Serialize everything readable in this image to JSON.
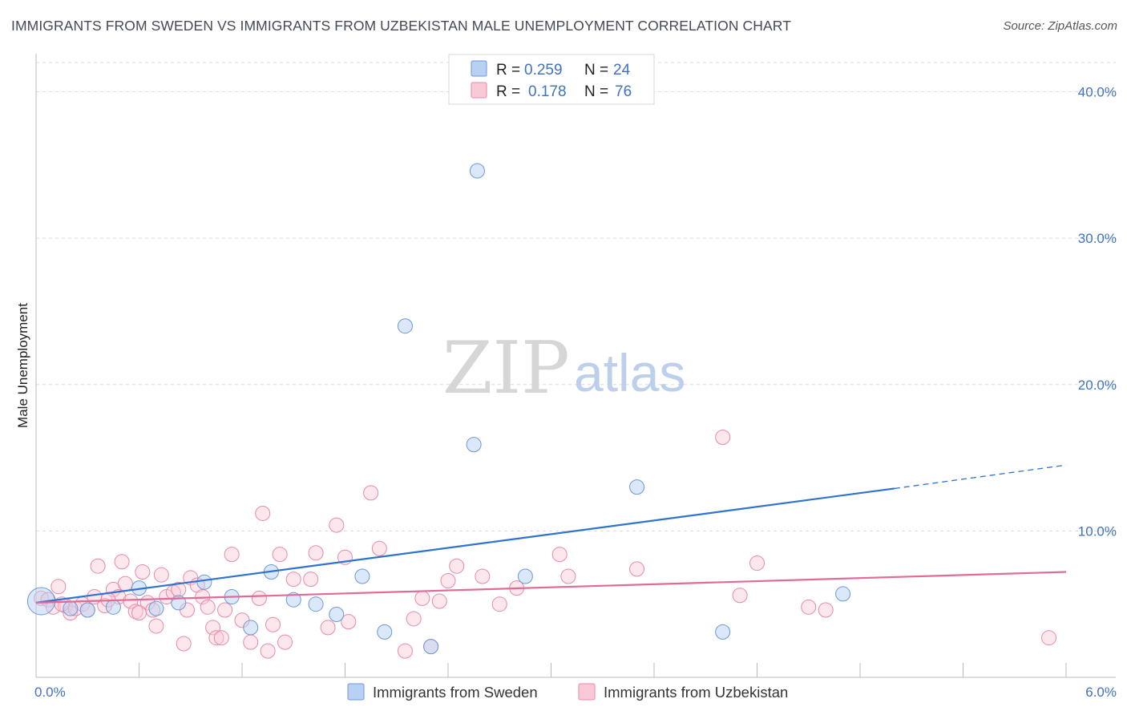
{
  "title": "IMMIGRANTS FROM SWEDEN VS IMMIGRANTS FROM UZBEKISTAN MALE UNEMPLOYMENT CORRELATION CHART",
  "source": "Source: ZipAtlas.com",
  "watermark": {
    "zip": "ZIP",
    "atlas": "atlas"
  },
  "chart_data": {
    "type": "scatter",
    "title": "IMMIGRANTS FROM SWEDEN VS IMMIGRANTS FROM UZBEKISTAN MALE UNEMPLOYMENT CORRELATION CHART",
    "xlabel": "",
    "ylabel": "Male Unemployment",
    "xlim": [
      0,
      6.0
    ],
    "ylim": [
      0,
      42
    ],
    "x_tick_labels": [
      "0.0%",
      "6.0%"
    ],
    "y_ticks": [
      10,
      20,
      30,
      40
    ],
    "y_tick_labels": [
      "10.0%",
      "20.0%",
      "30.0%",
      "40.0%"
    ],
    "grid": true,
    "legend_position": "top-center",
    "stats": [
      {
        "r_label": "R =",
        "r_value": "0.259",
        "n_label": "N =",
        "n_value": "24"
      },
      {
        "r_label": "R =",
        "r_value": "0.178",
        "n_label": "N =",
        "n_value": "76"
      }
    ],
    "colors": {
      "sweden_fill": "#b8d1f3",
      "sweden_stroke": "#6c98d8",
      "sweden_line": "#2f72d0",
      "uzbek_fill": "#f9c9d7",
      "uzbek_stroke": "#e88aa8",
      "uzbek_line": "#e06b96"
    },
    "series": [
      {
        "name": "Immigrants from Sweden",
        "trend": {
          "x0": 0.0,
          "y0": 5.1,
          "x1": 5.0,
          "y1": 12.9,
          "dash_to_x": 6.0,
          "dash_to_y": 14.5
        },
        "points": [
          [
            0.03,
            5.2,
            17
          ],
          [
            0.3,
            4.6,
            9
          ],
          [
            0.45,
            4.8,
            9
          ],
          [
            0.6,
            6.1,
            9
          ],
          [
            0.7,
            4.7,
            9
          ],
          [
            0.83,
            5.1,
            9
          ],
          [
            0.98,
            6.5,
            9
          ],
          [
            1.14,
            5.5,
            9
          ],
          [
            1.25,
            3.4,
            9
          ],
          [
            1.37,
            7.2,
            9
          ],
          [
            1.5,
            5.3,
            9
          ],
          [
            1.63,
            5.0,
            9
          ],
          [
            1.75,
            4.3,
            9
          ],
          [
            1.9,
            6.9,
            9
          ],
          [
            2.03,
            3.1,
            9
          ],
          [
            2.15,
            24.0,
            9
          ],
          [
            2.3,
            2.1,
            9
          ],
          [
            2.55,
            15.9,
            9
          ],
          [
            2.57,
            34.6,
            9
          ],
          [
            2.85,
            6.9,
            9
          ],
          [
            3.5,
            13.0,
            9
          ],
          [
            4.0,
            3.1,
            9
          ],
          [
            4.7,
            5.7,
            9
          ],
          [
            0.2,
            4.7,
            9
          ]
        ]
      },
      {
        "name": "Immigrants from Uzbekistan",
        "trend": {
          "x0": 0.0,
          "y0": 5.1,
          "x1": 6.0,
          "y1": 7.2
        },
        "points": [
          [
            0.03,
            5.4,
            9
          ],
          [
            0.07,
            5.3,
            9
          ],
          [
            0.1,
            4.8,
            9
          ],
          [
            0.13,
            6.2,
            9
          ],
          [
            0.17,
            4.9,
            9
          ],
          [
            0.2,
            4.4,
            9
          ],
          [
            0.23,
            4.7,
            9
          ],
          [
            0.27,
            5.0,
            9
          ],
          [
            0.3,
            4.6,
            9
          ],
          [
            0.34,
            5.5,
            9
          ],
          [
            0.36,
            7.6,
            9
          ],
          [
            0.4,
            4.9,
            9
          ],
          [
            0.45,
            6.0,
            9
          ],
          [
            0.48,
            5.5,
            9
          ],
          [
            0.5,
            7.9,
            9
          ],
          [
            0.52,
            6.4,
            9
          ],
          [
            0.55,
            5.2,
            9
          ],
          [
            0.58,
            4.5,
            9
          ],
          [
            0.62,
            7.2,
            9
          ],
          [
            0.65,
            5.1,
            9
          ],
          [
            0.68,
            4.6,
            9
          ],
          [
            0.7,
            3.5,
            9
          ],
          [
            0.73,
            7.0,
            9
          ],
          [
            0.76,
            5.5,
            9
          ],
          [
            0.8,
            5.8,
            9
          ],
          [
            0.83,
            6.0,
            9
          ],
          [
            0.86,
            2.3,
            9
          ],
          [
            0.88,
            4.6,
            9
          ],
          [
            0.9,
            6.8,
            9
          ],
          [
            0.94,
            6.3,
            9
          ],
          [
            0.97,
            5.5,
            9
          ],
          [
            1.0,
            4.8,
            9
          ],
          [
            1.03,
            3.4,
            9
          ],
          [
            1.05,
            2.7,
            9
          ],
          [
            1.08,
            2.7,
            9
          ],
          [
            1.1,
            4.6,
            9
          ],
          [
            1.14,
            8.4,
            9
          ],
          [
            1.2,
            3.9,
            9
          ],
          [
            1.25,
            2.4,
            9
          ],
          [
            1.3,
            5.4,
            9
          ],
          [
            1.32,
            11.2,
            9
          ],
          [
            1.35,
            1.8,
            9
          ],
          [
            1.38,
            3.6,
            9
          ],
          [
            1.42,
            8.4,
            9
          ],
          [
            1.45,
            2.4,
            9
          ],
          [
            1.5,
            6.7,
            9
          ],
          [
            1.6,
            6.7,
            9
          ],
          [
            1.63,
            8.5,
            9
          ],
          [
            1.7,
            3.4,
            9
          ],
          [
            1.75,
            10.4,
            9
          ],
          [
            1.8,
            8.2,
            9
          ],
          [
            1.82,
            3.8,
            9
          ],
          [
            1.95,
            12.6,
            9
          ],
          [
            2.0,
            8.8,
            9
          ],
          [
            2.15,
            1.8,
            9
          ],
          [
            2.2,
            4.0,
            9
          ],
          [
            2.25,
            5.4,
            9
          ],
          [
            2.3,
            2.1,
            9
          ],
          [
            2.35,
            5.2,
            9
          ],
          [
            2.4,
            6.6,
            9
          ],
          [
            2.45,
            7.6,
            9
          ],
          [
            2.6,
            6.9,
            9
          ],
          [
            2.7,
            5.0,
            9
          ],
          [
            2.8,
            6.1,
            9
          ],
          [
            3.05,
            8.4,
            9
          ],
          [
            3.1,
            6.9,
            9
          ],
          [
            3.5,
            7.4,
            9
          ],
          [
            4.0,
            16.4,
            9
          ],
          [
            4.1,
            5.6,
            9
          ],
          [
            4.2,
            7.8,
            9
          ],
          [
            4.5,
            4.8,
            9
          ],
          [
            4.6,
            4.6,
            9
          ],
          [
            5.9,
            2.7,
            9
          ],
          [
            0.6,
            4.4,
            9
          ],
          [
            0.15,
            5.0,
            9
          ],
          [
            0.42,
            5.3,
            9
          ]
        ]
      }
    ]
  },
  "legend": {
    "sweden_label": "Immigrants from Sweden",
    "uzbek_label": "Immigrants from Uzbekistan"
  }
}
